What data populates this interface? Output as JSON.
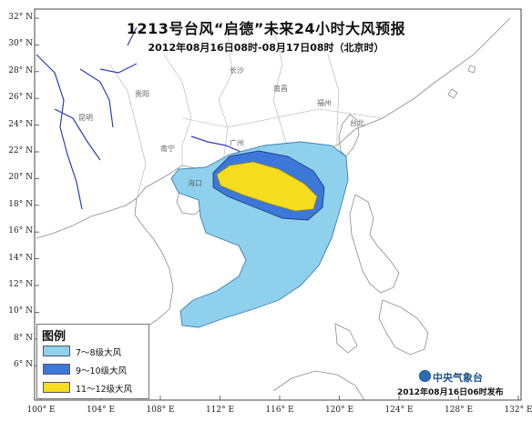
{
  "header": {
    "title": "1213号台风“启德”未来24小时大风预报",
    "subtitle": "2012年08月16日08时-08月17日08时（北京时）"
  },
  "axes": {
    "lat_labels": [
      "32° N",
      "30° N",
      "28° N",
      "26° N",
      "24° N",
      "22° N",
      "20° N",
      "18° N",
      "16° N",
      "14° N",
      "12° N",
      "10° N",
      "8° N",
      "6° N"
    ],
    "lon_labels": [
      "100° E",
      "104° E",
      "108° E",
      "112° E",
      "116° E",
      "120° E",
      "124° E",
      "128° E",
      "132° E"
    ]
  },
  "cities": {
    "changsha": "长沙",
    "guiyang": "贵阳",
    "kunming": "昆明",
    "fuzhou": "福州",
    "nanchang": "南昌",
    "guangzhou": "广州",
    "nanning": "南宁",
    "taibei": "台北",
    "haikou": "海口"
  },
  "legend": {
    "title": "图例",
    "items": [
      {
        "label": "7～8级大风",
        "color": "#8fd0ec"
      },
      {
        "label": "9～10级大风",
        "color": "#3c78d8"
      },
      {
        "label": "11～12级大风",
        "color": "#f5dc1e"
      }
    ]
  },
  "footer": {
    "agency": "中央气象台",
    "issued": "2012年08月16日06时发布"
  },
  "colors": {
    "land": "#ffffff",
    "sea": "#ffffff",
    "rivers": "#2a3fb8",
    "borders": "#999999"
  }
}
